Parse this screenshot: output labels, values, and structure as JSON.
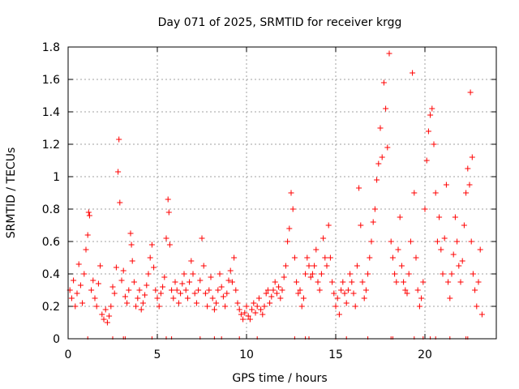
{
  "chart_data": {
    "type": "scatter",
    "title": "Day 071 of 2025, SRMTID for receiver krgg",
    "xlabel": "GPS time / hours",
    "ylabel": "SRMTID / TECUs",
    "xlim": [
      0,
      24
    ],
    "ylim": [
      0,
      1.8
    ],
    "xticks": [
      0,
      5,
      10,
      15,
      20
    ],
    "xtick_labels": [
      "0",
      "5",
      "10",
      "15",
      "20"
    ],
    "yticks": [
      0,
      0.2,
      0.4,
      0.6,
      0.8,
      1.0,
      1.2,
      1.4,
      1.6,
      1.8
    ],
    "ytick_labels": [
      "0",
      "0.2",
      "0.4",
      "0.6",
      "0.8",
      "1",
      "1.2",
      "1.4",
      "1.6",
      "1.8"
    ],
    "grid": true,
    "marker": "+",
    "marker_color": "#ff0000",
    "series": [
      {
        "name": "SRMTID",
        "points": [
          [
            0.1,
            0.3
          ],
          [
            0.2,
            0.25
          ],
          [
            0.3,
            0.36
          ],
          [
            0.4,
            0.2
          ],
          [
            0.5,
            0.28
          ],
          [
            0.6,
            0.46
          ],
          [
            0.7,
            0.33
          ],
          [
            0.8,
            0.22
          ],
          [
            0.9,
            0.4
          ],
          [
            1.0,
            0.55
          ],
          [
            1.1,
            0.64
          ],
          [
            1.15,
            0.78
          ],
          [
            1.2,
            0.76
          ],
          [
            1.3,
            0.3
          ],
          [
            1.4,
            0.36
          ],
          [
            1.5,
            0.25
          ],
          [
            1.6,
            0.2
          ],
          [
            1.7,
            0.34
          ],
          [
            1.8,
            0.45
          ],
          [
            1.9,
            0.15
          ],
          [
            2.0,
            0.12
          ],
          [
            2.1,
            0.18
          ],
          [
            2.2,
            0.1
          ],
          [
            2.3,
            0.14
          ],
          [
            2.4,
            0.2
          ],
          [
            2.5,
            0.32
          ],
          [
            2.6,
            0.28
          ],
          [
            2.7,
            0.44
          ],
          [
            2.8,
            1.03
          ],
          [
            2.85,
            1.23
          ],
          [
            2.9,
            0.84
          ],
          [
            3.0,
            0.36
          ],
          [
            3.1,
            0.42
          ],
          [
            3.2,
            0.26
          ],
          [
            3.3,
            0.22
          ],
          [
            3.4,
            0.3
          ],
          [
            3.5,
            0.65
          ],
          [
            3.55,
            0.58
          ],
          [
            3.6,
            0.48
          ],
          [
            3.7,
            0.35
          ],
          [
            3.8,
            0.2
          ],
          [
            3.9,
            0.25
          ],
          [
            4.0,
            0.3
          ],
          [
            4.1,
            0.18
          ],
          [
            4.2,
            0.22
          ],
          [
            4.3,
            0.27
          ],
          [
            4.4,
            0.33
          ],
          [
            4.5,
            0.4
          ],
          [
            4.6,
            0.5
          ],
          [
            4.7,
            0.58
          ],
          [
            4.8,
            0.44
          ],
          [
            4.9,
            0.3
          ],
          [
            5.0,
            0.25
          ],
          [
            5.1,
            0.2
          ],
          [
            5.2,
            0.28
          ],
          [
            5.3,
            0.32
          ],
          [
            5.4,
            0.38
          ],
          [
            5.5,
            0.62
          ],
          [
            5.6,
            0.86
          ],
          [
            5.65,
            0.78
          ],
          [
            5.7,
            0.58
          ],
          [
            5.8,
            0.3
          ],
          [
            5.9,
            0.25
          ],
          [
            6.0,
            0.35
          ],
          [
            6.1,
            0.3
          ],
          [
            6.2,
            0.22
          ],
          [
            6.3,
            0.28
          ],
          [
            6.4,
            0.34
          ],
          [
            6.5,
            0.4
          ],
          [
            6.6,
            0.3
          ],
          [
            6.7,
            0.25
          ],
          [
            6.8,
            0.35
          ],
          [
            6.9,
            0.48
          ],
          [
            7.0,
            0.4
          ],
          [
            7.1,
            0.28
          ],
          [
            7.2,
            0.22
          ],
          [
            7.3,
            0.3
          ],
          [
            7.4,
            0.36
          ],
          [
            7.5,
            0.62
          ],
          [
            7.6,
            0.45
          ],
          [
            7.7,
            0.28
          ],
          [
            7.8,
            0.2
          ],
          [
            7.9,
            0.3
          ],
          [
            8.0,
            0.38
          ],
          [
            8.1,
            0.25
          ],
          [
            8.2,
            0.18
          ],
          [
            8.3,
            0.22
          ],
          [
            8.4,
            0.3
          ],
          [
            8.5,
            0.4
          ],
          [
            8.6,
            0.32
          ],
          [
            8.7,
            0.26
          ],
          [
            8.8,
            0.2
          ],
          [
            8.9,
            0.28
          ],
          [
            9.0,
            0.36
          ],
          [
            9.1,
            0.42
          ],
          [
            9.2,
            0.35
          ],
          [
            9.3,
            0.5
          ],
          [
            9.4,
            0.3
          ],
          [
            9.5,
            0.22
          ],
          [
            9.6,
            0.18
          ],
          [
            9.7,
            0.15
          ],
          [
            9.8,
            0.12
          ],
          [
            9.9,
            0.16
          ],
          [
            10.0,
            0.2
          ],
          [
            10.1,
            0.14
          ],
          [
            10.2,
            0.12
          ],
          [
            10.3,
            0.18
          ],
          [
            10.4,
            0.22
          ],
          [
            10.5,
            0.16
          ],
          [
            10.6,
            0.2
          ],
          [
            10.7,
            0.25
          ],
          [
            10.8,
            0.18
          ],
          [
            10.9,
            0.15
          ],
          [
            11.0,
            0.2
          ],
          [
            11.1,
            0.28
          ],
          [
            11.2,
            0.3
          ],
          [
            11.3,
            0.22
          ],
          [
            11.4,
            0.26
          ],
          [
            11.5,
            0.3
          ],
          [
            11.6,
            0.35
          ],
          [
            11.7,
            0.28
          ],
          [
            11.8,
            0.32
          ],
          [
            11.9,
            0.25
          ],
          [
            12.0,
            0.3
          ],
          [
            12.1,
            0.38
          ],
          [
            12.2,
            0.45
          ],
          [
            12.3,
            0.6
          ],
          [
            12.4,
            0.68
          ],
          [
            12.5,
            0.9
          ],
          [
            12.6,
            0.8
          ],
          [
            12.7,
            0.5
          ],
          [
            12.8,
            0.35
          ],
          [
            12.9,
            0.28
          ],
          [
            13.0,
            0.3
          ],
          [
            13.1,
            0.2
          ],
          [
            13.2,
            0.25
          ],
          [
            13.3,
            0.4
          ],
          [
            13.4,
            0.5
          ],
          [
            13.5,
            0.45
          ],
          [
            13.6,
            0.38
          ],
          [
            13.7,
            0.4
          ],
          [
            13.8,
            0.45
          ],
          [
            13.9,
            0.55
          ],
          [
            14.0,
            0.35
          ],
          [
            14.1,
            0.3
          ],
          [
            14.2,
            0.4
          ],
          [
            14.3,
            0.62
          ],
          [
            14.4,
            0.5
          ],
          [
            14.5,
            0.45
          ],
          [
            14.6,
            0.7
          ],
          [
            14.7,
            0.5
          ],
          [
            14.8,
            0.35
          ],
          [
            14.9,
            0.28
          ],
          [
            15.0,
            0.2
          ],
          [
            15.1,
            0.25
          ],
          [
            15.2,
            0.15
          ],
          [
            15.3,
            0.3
          ],
          [
            15.4,
            0.35
          ],
          [
            15.5,
            0.28
          ],
          [
            15.6,
            0.22
          ],
          [
            15.7,
            0.3
          ],
          [
            15.8,
            0.4
          ],
          [
            15.9,
            0.35
          ],
          [
            16.0,
            0.28
          ],
          [
            16.1,
            0.2
          ],
          [
            16.2,
            0.45
          ],
          [
            16.3,
            0.93
          ],
          [
            16.4,
            0.7
          ],
          [
            16.5,
            0.35
          ],
          [
            16.6,
            0.25
          ],
          [
            16.7,
            0.3
          ],
          [
            16.8,
            0.4
          ],
          [
            16.9,
            0.5
          ],
          [
            17.0,
            0.6
          ],
          [
            17.1,
            0.72
          ],
          [
            17.2,
            0.8
          ],
          [
            17.3,
            0.98
          ],
          [
            17.4,
            1.08
          ],
          [
            17.5,
            1.3
          ],
          [
            17.6,
            1.12
          ],
          [
            17.7,
            1.58
          ],
          [
            17.8,
            1.42
          ],
          [
            17.9,
            1.18
          ],
          [
            18.0,
            1.76
          ],
          [
            18.1,
            0.6
          ],
          [
            18.2,
            0.5
          ],
          [
            18.3,
            0.4
          ],
          [
            18.4,
            0.35
          ],
          [
            18.5,
            0.55
          ],
          [
            18.6,
            0.75
          ],
          [
            18.7,
            0.45
          ],
          [
            18.8,
            0.35
          ],
          [
            18.9,
            0.3
          ],
          [
            19.0,
            0.28
          ],
          [
            19.1,
            0.4
          ],
          [
            19.2,
            0.6
          ],
          [
            19.3,
            1.64
          ],
          [
            19.4,
            0.9
          ],
          [
            19.5,
            0.5
          ],
          [
            19.6,
            0.3
          ],
          [
            19.7,
            0.2
          ],
          [
            19.8,
            0.25
          ],
          [
            19.9,
            0.35
          ],
          [
            20.0,
            0.8
          ],
          [
            20.1,
            1.1
          ],
          [
            20.2,
            1.28
          ],
          [
            20.3,
            1.38
          ],
          [
            20.4,
            1.42
          ],
          [
            20.5,
            1.2
          ],
          [
            20.6,
            0.9
          ],
          [
            20.7,
            0.6
          ],
          [
            20.8,
            0.75
          ],
          [
            20.9,
            0.55
          ],
          [
            21.0,
            0.4
          ],
          [
            21.1,
            0.62
          ],
          [
            21.2,
            0.95
          ],
          [
            21.3,
            0.35
          ],
          [
            21.4,
            0.25
          ],
          [
            21.5,
            0.4
          ],
          [
            21.6,
            0.52
          ],
          [
            21.7,
            0.75
          ],
          [
            21.8,
            0.6
          ],
          [
            21.9,
            0.45
          ],
          [
            22.0,
            0.35
          ],
          [
            22.1,
            0.48
          ],
          [
            22.2,
            0.7
          ],
          [
            22.3,
            0.9
          ],
          [
            22.4,
            1.05
          ],
          [
            22.5,
            0.95
          ],
          [
            22.6,
            0.6
          ],
          [
            22.7,
            0.4
          ],
          [
            22.8,
            0.3
          ],
          [
            22.9,
            0.2
          ],
          [
            23.0,
            0.35
          ],
          [
            22.55,
            1.52
          ],
          [
            22.65,
            1.12
          ],
          [
            23.1,
            0.55
          ],
          [
            23.2,
            0.15
          ]
        ]
      }
    ],
    "coverage_marks_hours": [
      1.1,
      2.5,
      3.1,
      3.2,
      4.7,
      5.5,
      5.8,
      7.4,
      8.2,
      8.6,
      9.6,
      10.6,
      12.7,
      13.3,
      13.5,
      15.0,
      15.6,
      16.8,
      18.1,
      18.2,
      19.4,
      19.9,
      20.3,
      20.6,
      21.4,
      22.3,
      22.4
    ]
  }
}
